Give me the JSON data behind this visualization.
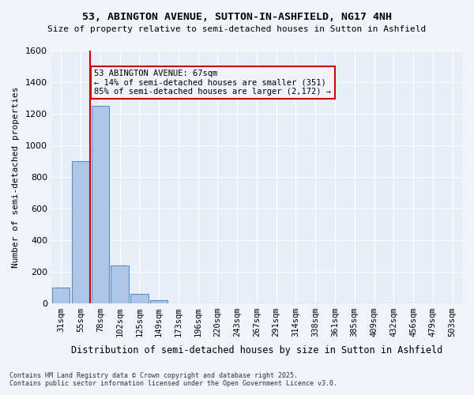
{
  "title": "53, ABINGTON AVENUE, SUTTON-IN-ASHFIELD, NG17 4NH",
  "subtitle": "Size of property relative to semi-detached houses in Sutton in Ashfield",
  "xlabel": "Distribution of semi-detached houses by size in Sutton in Ashfield",
  "ylabel": "Number of semi-detached properties",
  "categories": [
    "31sqm",
    "55sqm",
    "78sqm",
    "102sqm",
    "125sqm",
    "149sqm",
    "173sqm",
    "196sqm",
    "220sqm",
    "243sqm",
    "267sqm",
    "291sqm",
    "314sqm",
    "338sqm",
    "361sqm",
    "385sqm",
    "409sqm",
    "432sqm",
    "456sqm",
    "479sqm",
    "503sqm"
  ],
  "bar_values": [
    100,
    900,
    1250,
    240,
    60,
    20,
    0,
    0,
    0,
    0,
    0,
    0,
    0,
    0,
    0,
    0,
    0,
    0,
    0,
    0,
    0
  ],
  "bar_color": "#aec6e8",
  "bar_edge_color": "#5a8fc3",
  "vline_x": 1.5,
  "vline_color": "#cc0000",
  "annotation_title": "53 ABINGTON AVENUE: 67sqm",
  "annotation_line1": "← 14% of semi-detached houses are smaller (351)",
  "annotation_line2": "85% of semi-detached houses are larger (2,172) →",
  "annotation_box_color": "#cc0000",
  "ylim": [
    0,
    1600
  ],
  "yticks": [
    0,
    200,
    400,
    600,
    800,
    1000,
    1200,
    1400,
    1600
  ],
  "footnote1": "Contains HM Land Registry data © Crown copyright and database right 2025.",
  "footnote2": "Contains public sector information licensed under the Open Government Licence v3.0.",
  "bg_color": "#f0f4fa",
  "plot_bg_color": "#e8eef8"
}
